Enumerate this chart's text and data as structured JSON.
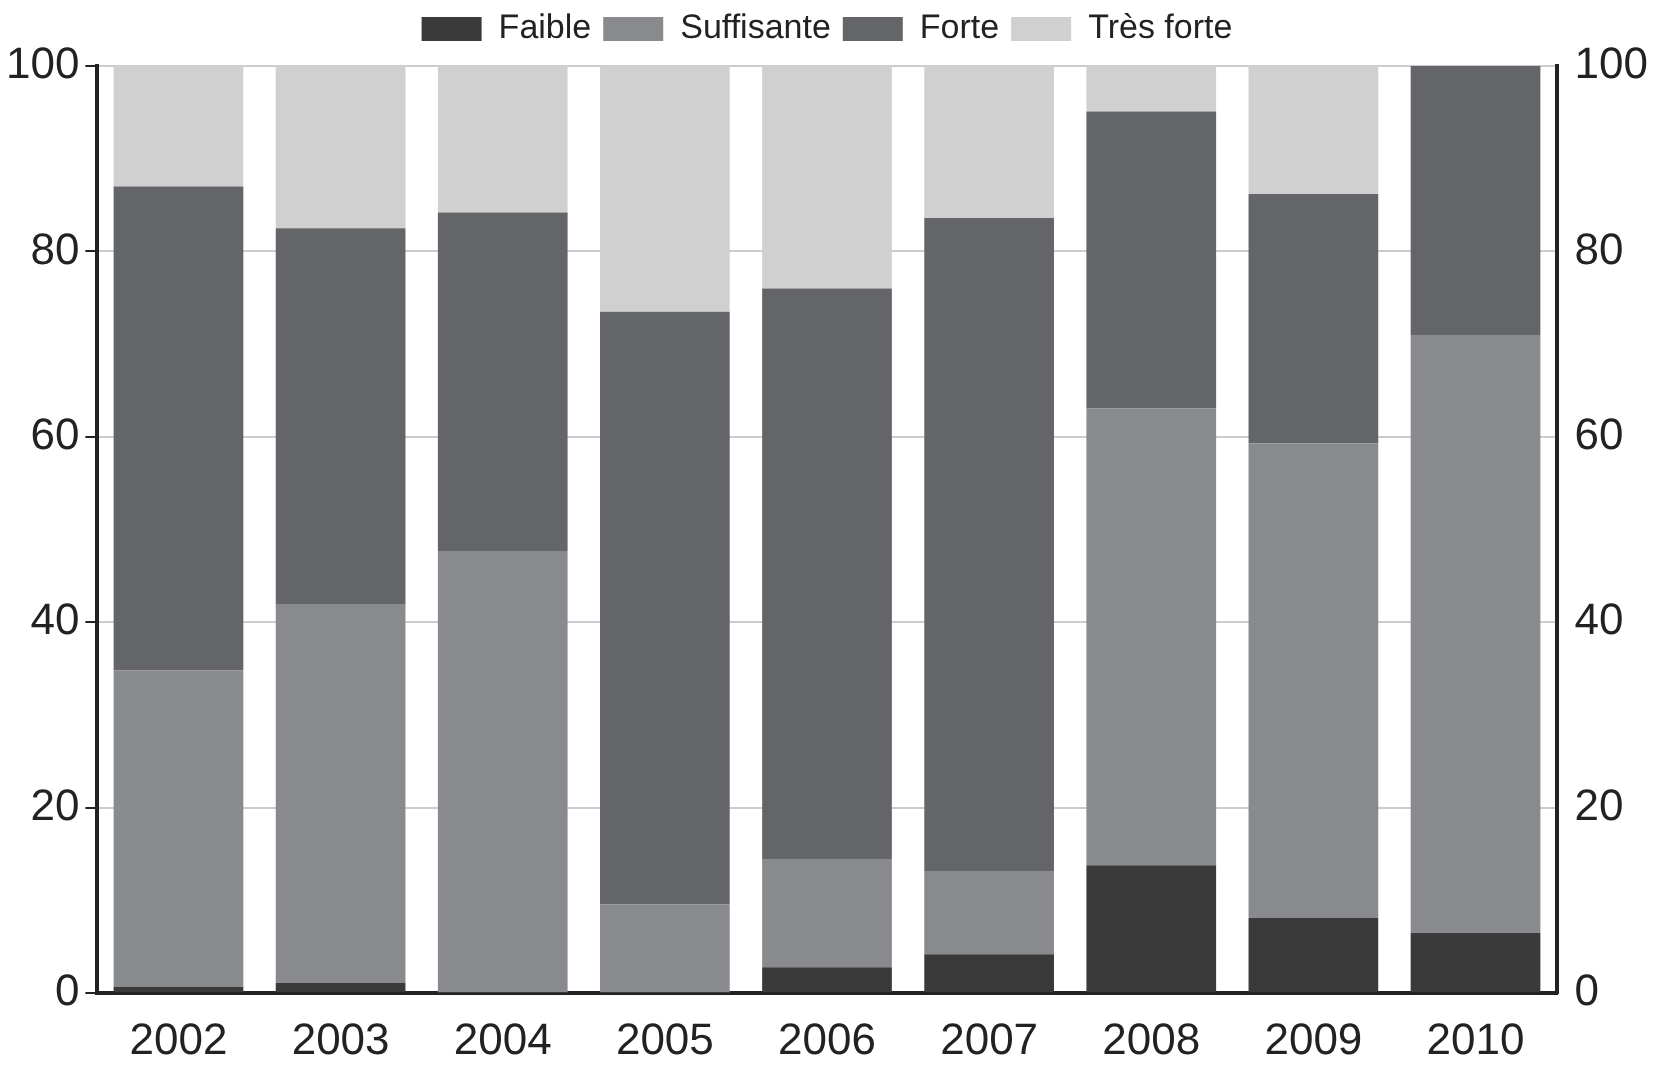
{
  "chart_data": {
    "type": "bar",
    "stacked": true,
    "categories": [
      "2002",
      "2003",
      "2004",
      "2005",
      "2006",
      "2007",
      "2008",
      "2009",
      "2010"
    ],
    "series": [
      {
        "name": "Faible",
        "color": "#3a3a3a",
        "values": [
          0.7,
          1.1,
          0,
          0,
          2.8,
          4.2,
          13.8,
          8.1,
          6.5
        ]
      },
      {
        "name": "Suffisante",
        "color": "#898a8e",
        "values": [
          34.1,
          40.8,
          47.7,
          9.6,
          11.6,
          8.9,
          49.3,
          51.2,
          64.4
        ]
      },
      {
        "name": "Forte",
        "color": "#646569",
        "values": [
          52.2,
          40.6,
          36.5,
          63.9,
          61.6,
          70.5,
          32.0,
          26.9,
          29.1
        ]
      },
      {
        "name": "Très forte",
        "color": "#d0d0d0",
        "values": [
          13.0,
          17.5,
          15.8,
          26.5,
          24.0,
          16.4,
          4.9,
          13.8,
          0
        ]
      }
    ],
    "ylim": [
      0,
      100
    ],
    "yticks": [
      0,
      20,
      40,
      60,
      80,
      100
    ],
    "y2lim": [
      0,
      100
    ],
    "y2ticks": [
      0,
      20,
      40,
      60,
      80,
      100
    ],
    "grid": "y",
    "legend": "top"
  }
}
